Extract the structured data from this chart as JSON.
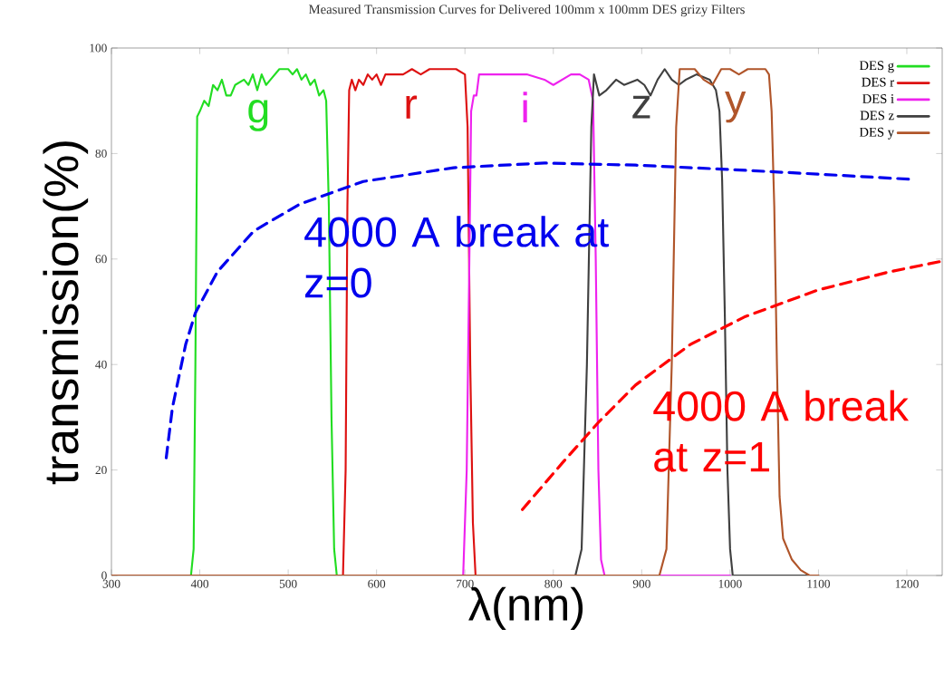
{
  "chart_data": {
    "type": "line",
    "title": "Measured Transmission Curves for Delivered 100mm x 100mm DES grizy Filters",
    "xlabel": "λ(nm)",
    "ylabel": "transmission(%)",
    "xlim": [
      300,
      1240
    ],
    "ylim": [
      0,
      100
    ],
    "xticks": [
      300,
      400,
      500,
      600,
      700,
      800,
      900,
      1000,
      1100,
      1200
    ],
    "yticks": [
      0,
      20,
      40,
      60,
      80,
      100
    ],
    "legend": "top right",
    "marker": "none",
    "grid": false,
    "series": [
      {
        "name": "DES g",
        "color": "#22dd22",
        "x": [
          300,
          385,
          390,
          393,
          395,
          397,
          400,
          405,
          410,
          415,
          420,
          425,
          430,
          435,
          440,
          450,
          455,
          460,
          465,
          470,
          475,
          480,
          490,
          500,
          505,
          510,
          515,
          520,
          525,
          530,
          535,
          540,
          543,
          546,
          549,
          552,
          555,
          560
        ],
        "values": [
          0,
          0,
          0,
          5,
          40,
          87,
          88,
          90,
          89,
          93,
          92,
          94,
          91,
          91,
          93,
          94,
          93,
          95,
          92,
          95,
          93,
          94,
          96,
          96,
          95,
          96,
          94,
          95,
          93,
          94,
          91,
          92,
          90,
          70,
          30,
          5,
          0,
          0
        ]
      },
      {
        "name": "DES r",
        "color": "#dd1111",
        "x": [
          300,
          555,
          562,
          565,
          567,
          569,
          572,
          576,
          580,
          585,
          590,
          595,
          600,
          605,
          610,
          620,
          630,
          640,
          650,
          660,
          670,
          680,
          690,
          700,
          703,
          706,
          709,
          712,
          720
        ],
        "values": [
          0,
          0,
          0,
          20,
          70,
          92,
          94,
          92,
          94,
          93,
          95,
          94,
          95,
          93,
          95,
          95,
          95,
          96,
          95,
          96,
          96,
          96,
          96,
          95,
          85,
          40,
          10,
          0,
          0
        ]
      },
      {
        "name": "DES i",
        "color": "#ee22ee",
        "x": [
          300,
          690,
          698,
          702,
          705,
          707,
          710,
          713,
          716,
          720,
          730,
          750,
          770,
          790,
          800,
          810,
          820,
          830,
          840,
          845,
          848,
          851,
          854,
          858,
          1000
        ],
        "values": [
          0,
          0,
          0,
          20,
          60,
          88,
          91,
          91,
          95,
          95,
          95,
          95,
          95,
          94,
          93,
          94,
          95,
          95,
          94,
          90,
          60,
          20,
          3,
          0,
          0
        ]
      },
      {
        "name": "DES z",
        "color": "#404040",
        "x": [
          300,
          825,
          832,
          838,
          843,
          846,
          849,
          852,
          860,
          871,
          880,
          895,
          903,
          910,
          918,
          926,
          934,
          942,
          950,
          962,
          977,
          984,
          988,
          991,
          994,
          997,
          1000,
          1003,
          1100
        ],
        "values": [
          0,
          0,
          5,
          40,
          85,
          95,
          93,
          91,
          92,
          94,
          93,
          94,
          93,
          91,
          94,
          96,
          94,
          93,
          94,
          95,
          94,
          92,
          88,
          75,
          50,
          20,
          5,
          0,
          0
        ]
      },
      {
        "name": "DES y",
        "color": "#b0552a",
        "x": [
          300,
          920,
          928,
          934,
          939,
          943,
          950,
          960,
          970,
          980,
          990,
          1000,
          1010,
          1020,
          1030,
          1040,
          1044,
          1047,
          1050,
          1053,
          1056,
          1060,
          1070,
          1080,
          1090,
          1100
        ],
        "values": [
          0,
          0,
          5,
          40,
          85,
          96,
          96,
          96,
          94,
          93,
          96,
          96,
          95,
          96,
          96,
          96,
          95,
          88,
          70,
          40,
          15,
          7,
          3,
          1,
          0,
          0
        ]
      },
      {
        "color": "#0000ee",
        "line_style": "dashed",
        "x": [
          362,
          369,
          384,
          395,
          420,
          461,
          513,
          585,
          687,
          790,
          893,
          996,
          1099,
          1206
        ],
        "values": [
          22.3,
          31.8,
          43.8,
          49.8,
          57.6,
          65.3,
          70.4,
          74.7,
          77.3,
          78.2,
          77.8,
          77.0,
          76.1,
          75.1
        ]
      },
      {
        "color": "#ff0000",
        "line_style": "dashed",
        "x": [
          765,
          811,
          852,
          893,
          955,
          1016,
          1099,
          1181,
          1240
        ],
        "values": [
          12.5,
          21.5,
          29.2,
          36.1,
          43.8,
          49.0,
          54.1,
          57.6,
          59.6
        ]
      }
    ],
    "annotations": [
      "g",
      "r",
      "i",
      "z",
      "y",
      "4000 A break at z=0",
      "4000 A break at z=1"
    ]
  }
}
